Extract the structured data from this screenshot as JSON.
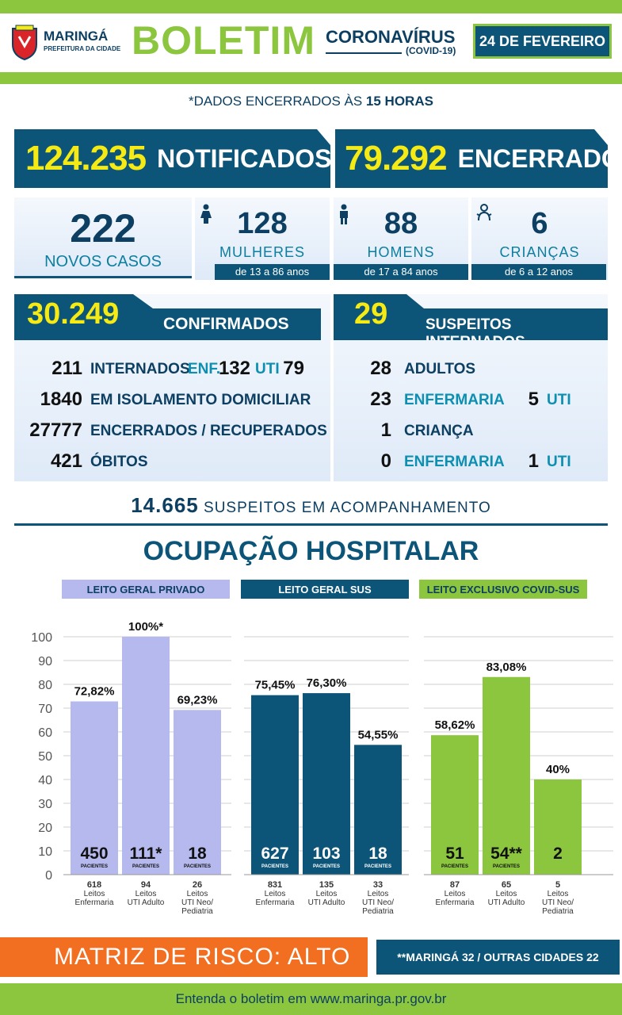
{
  "header": {
    "city": "MARINGÁ",
    "city_sub": "PREFEITURA DA CIDADE",
    "title": "BOLETIM",
    "topic": "CORONAVÍRUS",
    "topic_sub": "(COVID-19)",
    "date": "24 DE FEVEREIRO"
  },
  "dados": {
    "prefix": "*DADOS ENCERRADOS ÀS ",
    "time": "15 HORAS"
  },
  "totals": {
    "notificados_num": "124.235",
    "notificados_label": "NOTIFICADOS",
    "encerrados_num": "79.292",
    "encerrados_label": "ENCERRADOS"
  },
  "new_cases": [
    {
      "value": "222",
      "label": "NOVOS CASOS",
      "caption": ""
    },
    {
      "value": "128",
      "label": "MULHERES",
      "caption": "de 13 a 86 anos",
      "icon": "female-icon"
    },
    {
      "value": "88",
      "label": "HOMENS",
      "caption": "de 17 a 84 anos",
      "icon": "male-icon"
    },
    {
      "value": "6",
      "label": "CRIANÇAS",
      "caption": "de 6 a 12 anos",
      "icon": "child-icon"
    }
  ],
  "confirmados": {
    "num": "30.249",
    "label": "CONFIRMADOS",
    "rows": [
      {
        "value": "211",
        "label": "INTERNADOS"
      },
      {
        "value": "1840",
        "label": "EM ISOLAMENTO DOMICILIAR"
      },
      {
        "value": "27777",
        "label": "ENCERRADOS / RECUPERADOS"
      },
      {
        "value": "421",
        "label": "ÓBITOS"
      }
    ],
    "enf_label": "ENF.",
    "enf_value": "132",
    "uti_label": "UTI",
    "uti_value": "79"
  },
  "suspeitos": {
    "num": "29",
    "label": "SUSPEITOS INTERNADOS",
    "rows": [
      {
        "value": "28",
        "label": "ADULTOS",
        "uti_value": "",
        "uti_label": ""
      },
      {
        "value": "23",
        "label": "ENFERMARIA",
        "uti_value": "5",
        "uti_label": "UTI"
      },
      {
        "value": "1",
        "label": "CRIANÇA",
        "uti_value": "",
        "uti_label": ""
      },
      {
        "value": "0",
        "label": "ENFERMARIA",
        "uti_value": "1",
        "uti_label": "UTI"
      }
    ]
  },
  "acompanhamento": {
    "num": "14.665",
    "label": " SUSPEITOS EM ACOMPANHAMENTO"
  },
  "ocupacao_title": "OCUPAÇÃO HOSPITALAR",
  "colors": {
    "navy": "#0c5578",
    "green": "#8cc63f",
    "lavender": "#b5b9ee",
    "yellow": "#f5ea14",
    "orange": "#f26f21"
  },
  "chart_data": {
    "type": "bar",
    "ylim": [
      0,
      100
    ],
    "yticks": [
      0,
      10,
      20,
      30,
      40,
      50,
      60,
      70,
      80,
      90,
      100
    ],
    "grid": true,
    "patients_label": "PACIENTES",
    "groups": [
      {
        "name": "LEITO GERAL PRIVADO",
        "color": "#b5b9ee",
        "header_text_color": "#0c3f62",
        "bars": [
          {
            "value": 72.82,
            "label": "72,82%",
            "patients": "450",
            "show_patients_label": true,
            "beds": "618",
            "category": "Leitos Enfermaria"
          },
          {
            "value": 100,
            "label": "100%*",
            "patients": "111*",
            "show_patients_label": true,
            "beds": "94",
            "category": "Leitos UTI Adulto"
          },
          {
            "value": 69.23,
            "label": "69,23%",
            "patients": "18",
            "show_patients_label": true,
            "beds": "26",
            "category": "Leitos UTI Neo/ Pediatria"
          }
        ]
      },
      {
        "name": "LEITO GERAL SUS",
        "color": "#0c5578",
        "header_text_color": "#ffffff",
        "bars": [
          {
            "value": 75.45,
            "label": "75,45%",
            "patients": "627",
            "show_patients_label": true,
            "beds": "831",
            "category": "Leitos Enfermaria"
          },
          {
            "value": 76.3,
            "label": "76,30%",
            "patients": "103",
            "show_patients_label": true,
            "beds": "135",
            "category": "Leitos UTI Adulto"
          },
          {
            "value": 54.55,
            "label": "54,55%",
            "patients": "18",
            "show_patients_label": true,
            "beds": "33",
            "category": "Leitos UTI Neo/ Pediatria"
          }
        ]
      },
      {
        "name": "LEITO EXCLUSIVO COVID-SUS",
        "color": "#8cc63f",
        "header_text_color": "#0c3f62",
        "bars": [
          {
            "value": 58.62,
            "label": "58,62%",
            "patients": "51",
            "show_patients_label": true,
            "beds": "87",
            "category": "Leitos Enfermaria"
          },
          {
            "value": 83.08,
            "label": "83,08%",
            "patients": "54**",
            "show_patients_label": true,
            "beds": "65",
            "category": "Leitos UTI Adulto"
          },
          {
            "value": 40,
            "label": "40%",
            "patients": "2",
            "show_patients_label": false,
            "beds": "5",
            "category": "Leitos UTI Neo/ Pediatria"
          }
        ]
      }
    ]
  },
  "footer": {
    "risk": "MATRIZ DE RISCO: ALTO",
    "note": "**MARINGÁ 32 / OUTRAS CIDADES 22",
    "link": "Entenda o boletim em www.maringa.pr.gov.br"
  }
}
